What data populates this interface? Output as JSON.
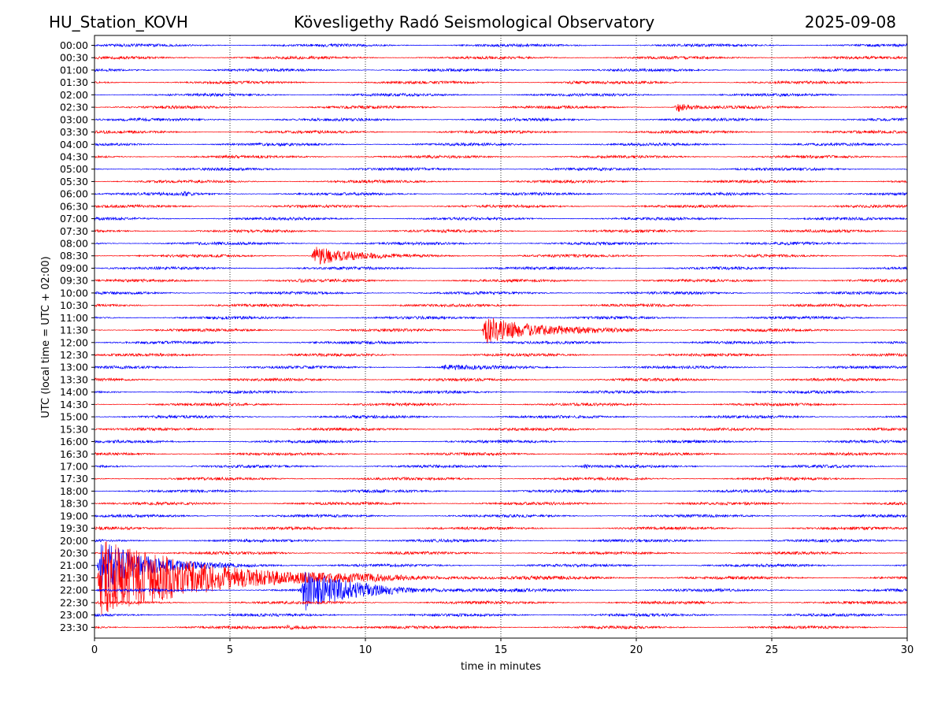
{
  "header": {
    "station": "HU_Station_KOVH",
    "observatory": "Kövesligethy Radó Seismological Observatory",
    "date": "2025-09-08"
  },
  "chart_data": {
    "type": "line",
    "title": "Kövesligethy Radó Seismological Observatory",
    "xlabel": "time in minutes",
    "ylabel": "UTC (local time = UTC + 02:00)",
    "xlim": [
      0,
      30
    ],
    "xticks": [
      "0",
      "5",
      "10",
      "15",
      "20",
      "25",
      "30"
    ],
    "vertical_gridlines_at": [
      5,
      10,
      15,
      20,
      25
    ],
    "grid": "vertical dotted",
    "legend": "none",
    "colors": {
      "even_rows": "#0000ff",
      "odd_rows": "#ff0000"
    },
    "row_labels": [
      "00:00",
      "00:30",
      "01:00",
      "01:30",
      "02:00",
      "02:30",
      "03:00",
      "03:30",
      "04:00",
      "04:30",
      "05:00",
      "05:30",
      "06:00",
      "06:30",
      "07:00",
      "07:30",
      "08:00",
      "08:30",
      "09:00",
      "09:30",
      "10:00",
      "10:30",
      "11:00",
      "11:30",
      "12:00",
      "12:30",
      "13:00",
      "13:30",
      "14:00",
      "14:30",
      "15:00",
      "15:30",
      "16:00",
      "16:30",
      "17:00",
      "17:30",
      "18:00",
      "18:30",
      "19:00",
      "19:30",
      "20:00",
      "20:30",
      "21:00",
      "21:30",
      "22:00",
      "22:30",
      "23:00",
      "23:30"
    ],
    "events": [
      {
        "row": "01:30",
        "start_min": 17.5,
        "peak_amplitude": 0.2,
        "duration_min": 0.6
      },
      {
        "row": "02:30",
        "start_min": 21.4,
        "peak_amplitude": 0.5,
        "duration_min": 1.5
      },
      {
        "row": "06:00",
        "start_min": 3.2,
        "peak_amplitude": 0.35,
        "duration_min": 0.5
      },
      {
        "row": "08:30",
        "start_min": 8.0,
        "peak_amplitude": 0.9,
        "duration_min": 3.5
      },
      {
        "row": "09:30",
        "start_min": 7.5,
        "peak_amplitude": 0.2,
        "duration_min": 0.4
      },
      {
        "row": "11:30",
        "start_min": 14.3,
        "peak_amplitude": 1.2,
        "duration_min": 5.5
      },
      {
        "row": "13:00",
        "start_min": 12.8,
        "peak_amplitude": 0.18,
        "duration_min": 3.5
      },
      {
        "row": "17:00",
        "start_min": 18.0,
        "peak_amplitude": 0.3,
        "duration_min": 0.4
      },
      {
        "row": "21:00",
        "start_min": 0.1,
        "peak_amplitude": 2.4,
        "duration_min": 4.5
      },
      {
        "row": "21:30",
        "start_min": 0.1,
        "peak_amplitude": 3.3,
        "duration_min": 11.0
      },
      {
        "row": "22:00",
        "start_min": 7.6,
        "peak_amplitude": 1.8,
        "duration_min": 5.5
      },
      {
        "row": "23:30",
        "start_min": 7.0,
        "peak_amplitude": 0.15,
        "duration_min": 4.5
      }
    ]
  }
}
